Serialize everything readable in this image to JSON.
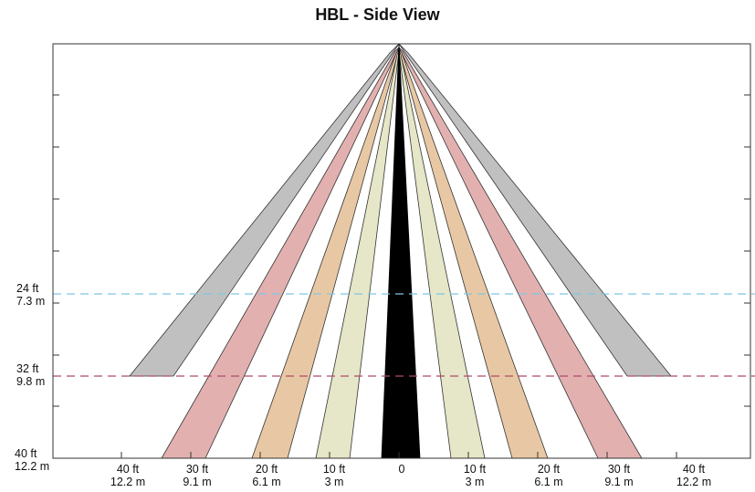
{
  "title": "HBL - Side View",
  "horizontal_lines": [
    {
      "ft_label": "24 ft",
      "m_label": "7.3 m",
      "color": "#7ec8e3"
    },
    {
      "ft_label": "32 ft",
      "m_label": "9.8 m",
      "color": "#b04a6a"
    }
  ],
  "bottom_left_label": {
    "ft": "40 ft",
    "m": "12.2 m"
  },
  "x_labels": [
    {
      "ft": "40 ft",
      "m": "12.2 m"
    },
    {
      "ft": "30 ft",
      "m": "9.1 m"
    },
    {
      "ft": "20 ft",
      "m": "6.1 m"
    },
    {
      "ft": "10 ft",
      "m": "3 m"
    },
    {
      "ft": "0",
      "m": ""
    },
    {
      "ft": "10 ft",
      "m": "3 m"
    },
    {
      "ft": "20 ft",
      "m": "6.1 m"
    },
    {
      "ft": "30 ft",
      "m": "9.1 m"
    },
    {
      "ft": "40 ft",
      "m": "12.2 m"
    }
  ],
  "beam_colors": {
    "center": "#000000",
    "ring_10ft": "#e6e6c8",
    "ring_20ft": "#e8c8a4",
    "ring_30ft": "#e3b0b0",
    "ring_40ft": "#c0c0c0"
  }
}
